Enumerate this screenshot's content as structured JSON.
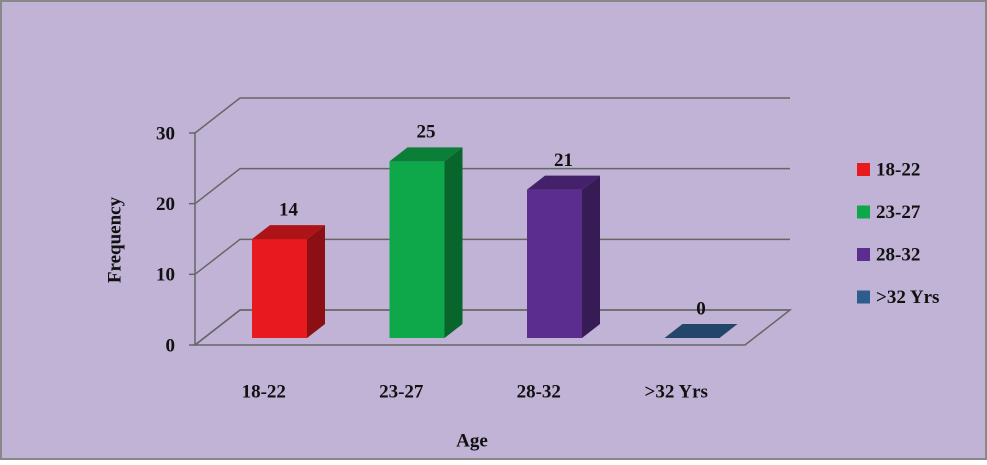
{
  "chart_data": {
    "type": "bar",
    "categories": [
      "18-22",
      "23-27",
      "28-32",
      ">32 Yrs"
    ],
    "values": [
      14,
      25,
      21,
      0
    ],
    "colors": [
      "#e8191f",
      "#0ea84a",
      "#5b2d8e",
      "#2e5c8c"
    ],
    "ylim": [
      0,
      30
    ],
    "yticks": [
      0,
      10,
      20,
      30
    ],
    "grid": true,
    "x_label": "Age",
    "y_label": "Frequency",
    "legend": "right"
  }
}
